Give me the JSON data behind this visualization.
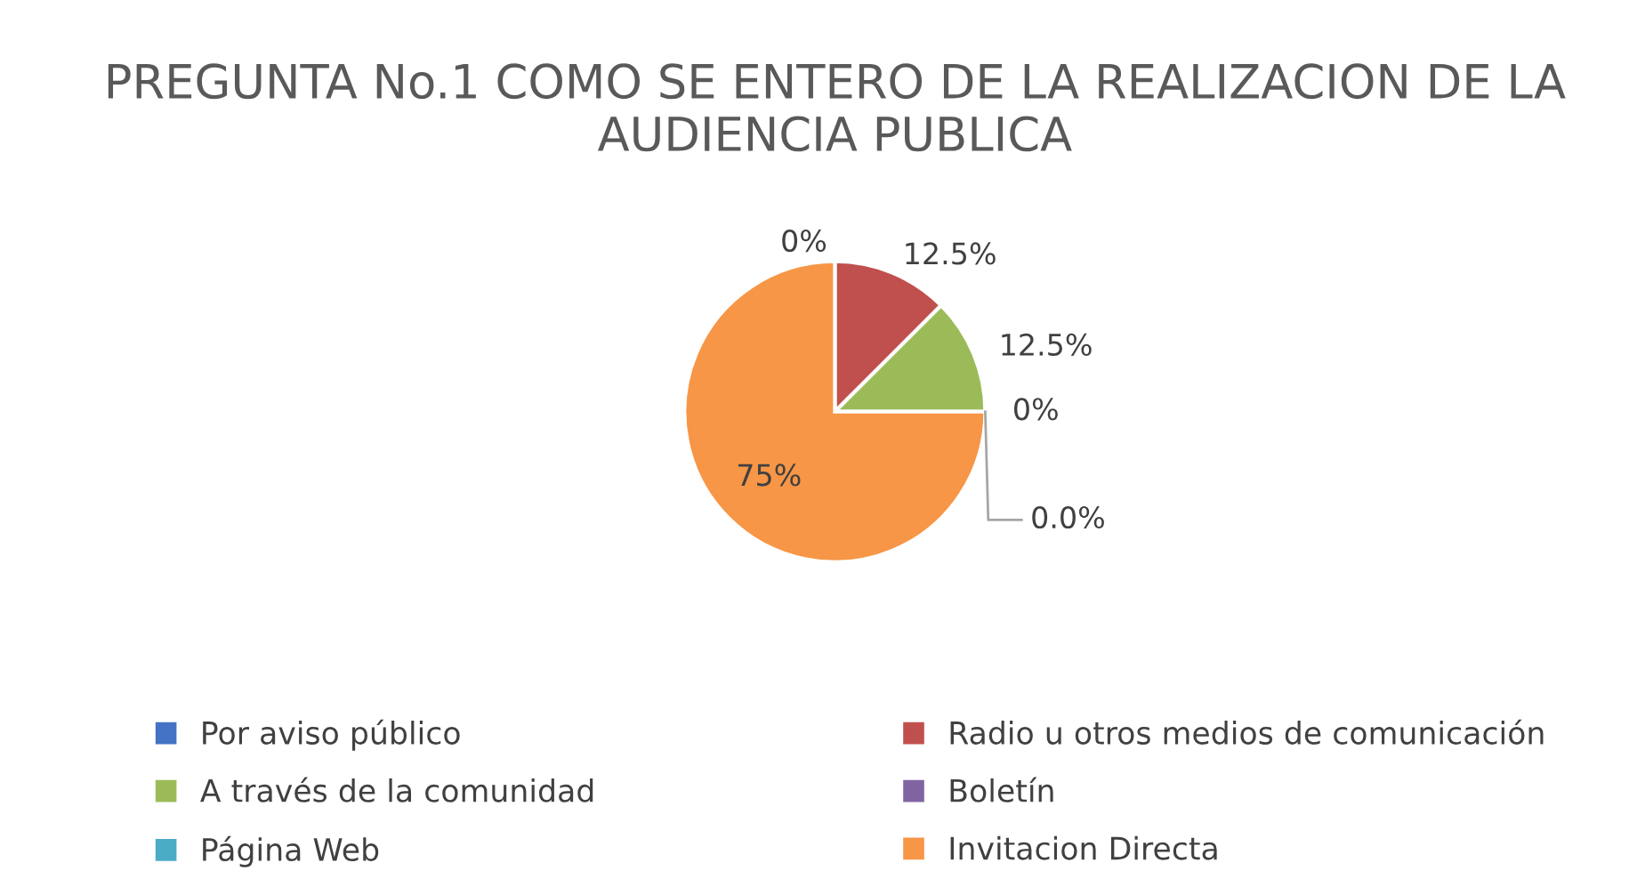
{
  "chart_data": {
    "type": "pie",
    "title": "PREGUNTA No.1 COMO SE ENTERO DE LA REALIZACION DE LA AUDIENCIA PUBLICA",
    "categories": [
      "Por aviso público",
      "Radio u otros medios de comunicación",
      "A través de la comunidad",
      "Boletín",
      "Página Web",
      "Invitacion Directa"
    ],
    "values": [
      0,
      12.5,
      12.5,
      0,
      0,
      75
    ],
    "value_labels": [
      "0%",
      "12.5%",
      "12.5%",
      "0%",
      "0.0%",
      "75%"
    ],
    "colors": [
      "#4472c4",
      "#c0504d",
      "#9bbb59",
      "#8064a2",
      "#4bacc6",
      "#f79646"
    ],
    "legend": "bottom"
  }
}
